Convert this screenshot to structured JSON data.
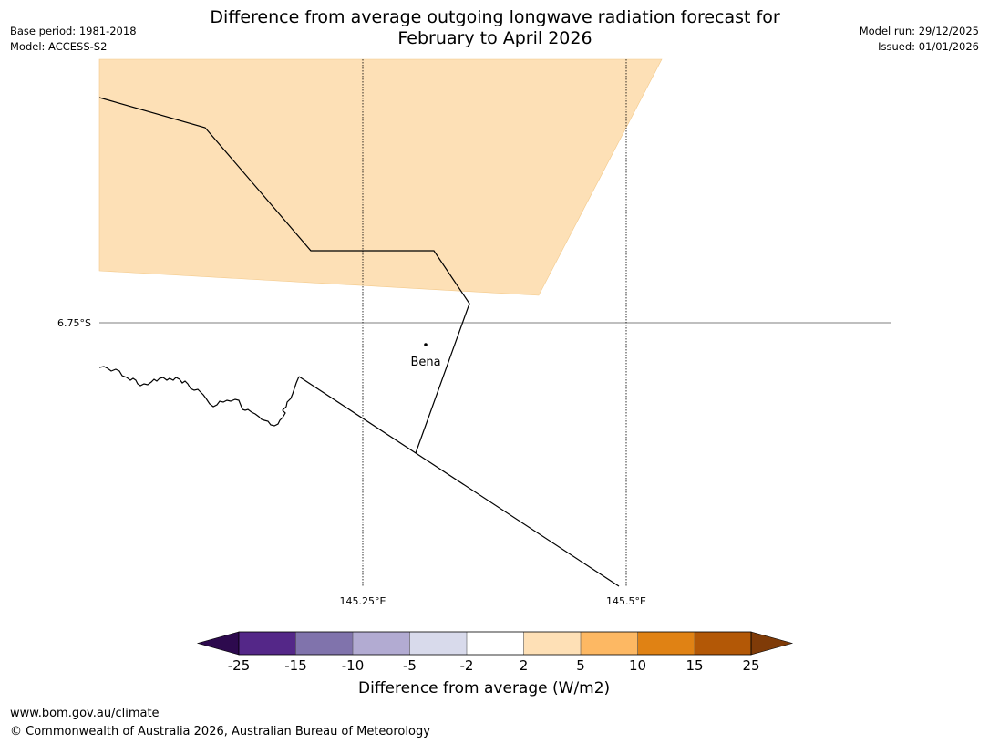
{
  "header": {
    "title_line1": "Difference from average outgoing longwave radiation forecast for",
    "title_line2": "February to April 2026",
    "base_period": "Base period: 1981-2018",
    "model": "Model: ACCESS-S2",
    "model_run": "Model run: 29/12/2025",
    "issued": "Issued: 01/01/2026"
  },
  "map": {
    "lat_label": "6.75°S",
    "lon_labels": [
      "145.25°E",
      "145.5°E"
    ],
    "place": "Bena",
    "anomaly_fill_color": "#fde0b6"
  },
  "colorbar": {
    "title": "Difference from average (W/m2)",
    "ticks": [
      "-25",
      "-15",
      "-10",
      "-5",
      "-2",
      "2",
      "5",
      "10",
      "15",
      "25"
    ],
    "colors": [
      "#2d0a4e",
      "#542788",
      "#8073ac",
      "#b2abd2",
      "#d8daeb",
      "#ffffff",
      "#fee0b6",
      "#fdb863",
      "#e08214",
      "#b35806",
      "#7f3b08"
    ]
  },
  "footer": {
    "url": "www.bom.gov.au/climate",
    "copyright": "© Commonwealth of Australia 2026, Australian Bureau of Meteorology"
  }
}
